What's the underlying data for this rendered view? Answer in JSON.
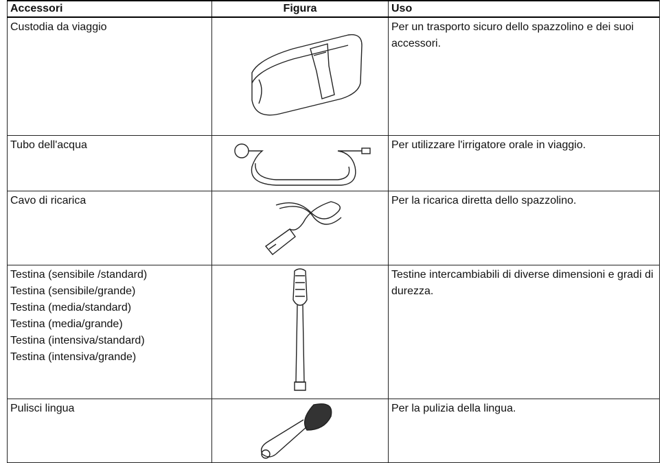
{
  "header": {
    "accessori": "Accessori",
    "figura": "Figura",
    "uso": "Uso"
  },
  "rows": [
    {
      "accessori": [
        "Custodia da viaggio"
      ],
      "uso": "Per un trasporto sicuro dello spazzolino e dei suoi accessori."
    },
    {
      "accessori": [
        "Tubo dell'acqua"
      ],
      "uso": "Per utilizzare l'irrigatore orale in viaggio."
    },
    {
      "accessori": [
        "Cavo di ricarica"
      ],
      "uso": "Per la ricarica diretta dello spazzolino."
    },
    {
      "accessori": [
        "Testina (sensibile /standard)",
        "Testina (sensibile/grande)",
        "Testina (media/standard)",
        "Testina (media/grande)",
        "Testina (intensiva/standard)",
        "Testina (intensiva/grande)"
      ],
      "uso": "Testine intercambiabili di diverse dimensioni e gradi di durezza."
    },
    {
      "accessori": [
        "Pulisci lingua"
      ],
      "uso": "Per la pulizia della lingua."
    }
  ]
}
